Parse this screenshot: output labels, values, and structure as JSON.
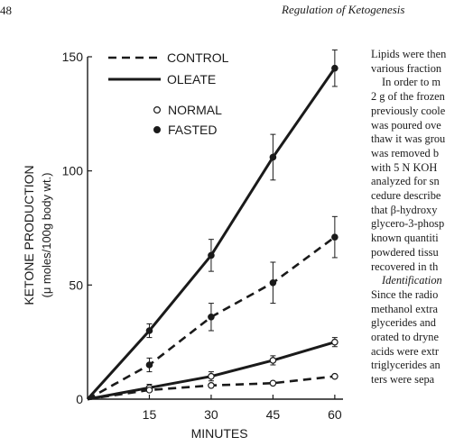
{
  "header": {
    "page_number": "48",
    "running_head": "Regulation of Ketogenesis"
  },
  "legend": {
    "line_styles": [
      {
        "label": "CONTROL",
        "style": "dashed"
      },
      {
        "label": "OLEATE",
        "style": "solid"
      }
    ],
    "markers": [
      {
        "label": "NORMAL",
        "marker": "open-circle"
      },
      {
        "label": "FASTED",
        "marker": "filled-circle"
      }
    ]
  },
  "chart_data": {
    "type": "line",
    "xlabel": "MINUTES",
    "ylabel": "KETONE PRODUCTION",
    "ylabel_units": "(μ moles/100g body wt.)",
    "x_ticks": [
      "15",
      "30",
      "45",
      "60"
    ],
    "y_ticks": [
      "0",
      "50",
      "100",
      "150"
    ],
    "xlim": [
      0,
      62
    ],
    "ylim": [
      0,
      150
    ],
    "grid": false,
    "legend_position": "top-left",
    "series": [
      {
        "name": "OLEATE · FASTED",
        "line": "solid",
        "marker": "filled",
        "x": [
          0,
          15,
          30,
          45,
          60
        ],
        "y": [
          0,
          30,
          63,
          106,
          145
        ],
        "err": [
          0,
          3,
          7,
          10,
          8
        ]
      },
      {
        "name": "CONTROL · FASTED",
        "line": "dashed",
        "marker": "filled",
        "x": [
          0,
          15,
          30,
          45,
          60
        ],
        "y": [
          0,
          15,
          36,
          51,
          71
        ],
        "err": [
          0,
          3,
          6,
          9,
          9
        ]
      },
      {
        "name": "OLEATE · NORMAL",
        "line": "solid",
        "marker": "open",
        "x": [
          0,
          15,
          30,
          45,
          60
        ],
        "y": [
          0,
          5,
          10,
          17,
          25
        ],
        "err": [
          0,
          1.5,
          2,
          2,
          2
        ]
      },
      {
        "name": "CONTROL · NORMAL",
        "line": "dashed",
        "marker": "open",
        "x": [
          0,
          15,
          30,
          45,
          60
        ],
        "y": [
          0,
          4,
          6,
          7,
          10
        ],
        "err": [
          0,
          1,
          1,
          1.2,
          1
        ]
      }
    ]
  },
  "body_text": [
    "Lipids were then",
    "various fraction",
    "In order to m",
    "2 g of the frozen",
    "previously coole",
    "was poured ove",
    "thaw it was grou",
    "was removed b",
    "with 5 N KOH",
    "analyzed for sn",
    "cedure describe",
    "that β-hydroxy",
    "glycero-3-phosp",
    "known quantiti",
    "powdered tissu",
    "recovered in th",
    "Identification",
    "Since the radio",
    "methanol extra",
    "glycerides and",
    "orated to dryne",
    "acids were extr",
    "triglycerides an",
    "ters were sepa"
  ]
}
